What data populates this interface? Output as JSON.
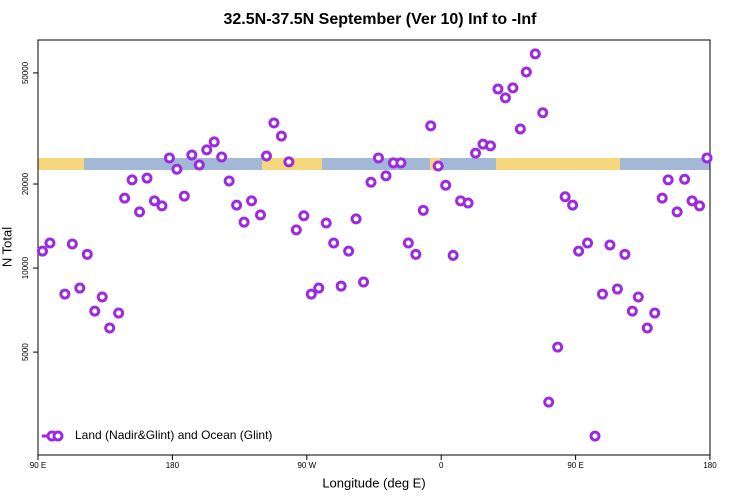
{
  "chart_data": {
    "type": "scatter",
    "title": "32.5N-37.5N September (Ver 10)   Inf to -Inf",
    "x_label": "Longitude (deg E)",
    "y_label": "N Total",
    "log_y": true,
    "grid": false,
    "legend_position": "lower left",
    "xlim": [
      90,
      540
    ],
    "xticks": [
      {
        "value": 90,
        "label": "90 E"
      },
      180,
      {
        "value": 270,
        "label": "90 W"
      },
      {
        "value": 360,
        "label": "0"
      },
      {
        "value": 450,
        "label": "90 E"
      },
      {
        "value": 540,
        "label": "180"
      }
    ],
    "ylim": [
      2140,
      65600
    ],
    "yticks": [
      5000,
      10000,
      20000,
      50000
    ],
    "series": [
      {
        "name": "Land (Nadir&Glint) and Ocean (Glint)",
        "color": "#9b2be0",
        "x": [
          93,
          98,
          108,
          113,
          118,
          123,
          128,
          133,
          138,
          144,
          148,
          153,
          158,
          163,
          168,
          173,
          178,
          183,
          188,
          193,
          198,
          203,
          208,
          213,
          218,
          223,
          228,
          233,
          239,
          243,
          248,
          253,
          258,
          263,
          268,
          273,
          278,
          283,
          288,
          293,
          298,
          303,
          308,
          313,
          318,
          323,
          328,
          333,
          338,
          343,
          348,
          353,
          358,
          363,
          368,
          373,
          378,
          383,
          388,
          393,
          398,
          403,
          408,
          413,
          417,
          423,
          428,
          432,
          438,
          443,
          448,
          452,
          458,
          463,
          468,
          473,
          478,
          483,
          488,
          492,
          498,
          503,
          508,
          512,
          518,
          523,
          528,
          533,
          538
        ],
        "values": [
          11500,
          12300,
          8070,
          12200,
          8480,
          11200,
          7010,
          7880,
          6100,
          6900,
          17800,
          20700,
          15900,
          21000,
          17400,
          16700,
          24800,
          22600,
          18100,
          25400,
          23400,
          26500,
          28300,
          25000,
          20500,
          16800,
          14600,
          17400,
          15500,
          25200,
          33100,
          29700,
          24000,
          13700,
          15400,
          8070,
          8480,
          14500,
          12300,
          8620,
          11500,
          15000,
          8910,
          20300,
          24800,
          21400,
          23800,
          23800,
          12300,
          11200,
          16100,
          32300,
          23200,
          19800,
          11100,
          17400,
          17100,
          25800,
          27800,
          27400,
          43800,
          40700,
          44200,
          31500,
          50400,
          58500,
          36000,
          3310,
          5210,
          18000,
          16800,
          11500,
          12300,
          2500,
          8070,
          12100,
          8410,
          11200,
          7010,
          7880,
          6100,
          6900,
          17800,
          20700,
          15900,
          20800,
          17400,
          16700,
          24800
        ]
      }
    ]
  }
}
